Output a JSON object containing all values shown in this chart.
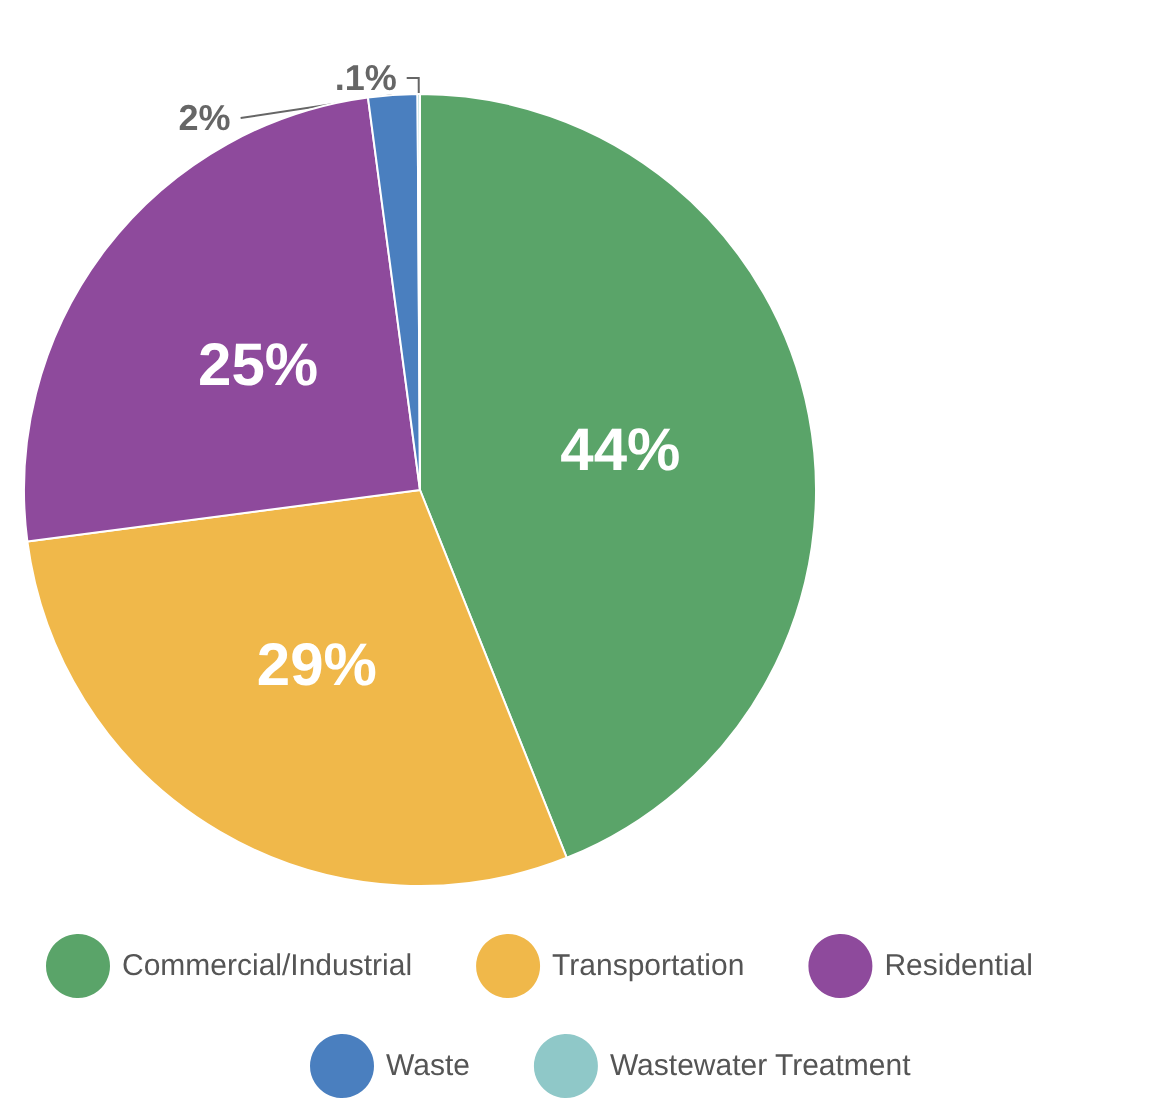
{
  "chart_data": {
    "type": "pie",
    "categories": [
      "Commercial/Industrial",
      "Transportation",
      "Residential",
      "Waste",
      "Wastewater Treatment"
    ],
    "values": [
      44,
      29,
      25,
      2,
      0.1
    ],
    "colors": [
      "#5aa469",
      "#f0b84a",
      "#8e4a9c",
      "#4a7fbf",
      "#8fc8c8"
    ],
    "value_labels": [
      "44%",
      "29%",
      "25%",
      "2%",
      ".1%"
    ],
    "legend": "bottom"
  }
}
